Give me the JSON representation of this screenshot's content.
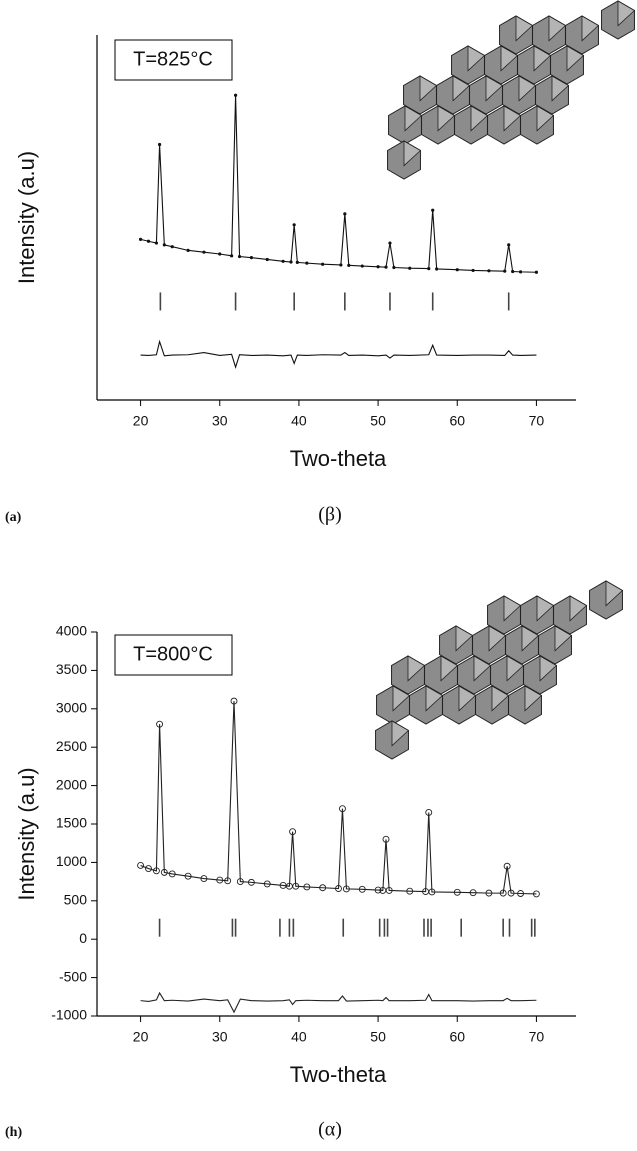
{
  "chart_data": [
    {
      "type": "line",
      "panel_label": "(a)",
      "caption": "(β)",
      "annotation": "T=825°C",
      "x_label": "Two-theta",
      "y_label": "Intensity (a.u)",
      "xlim": [
        15,
        75
      ],
      "xticks": [
        20,
        30,
        40,
        50,
        60,
        70
      ],
      "ylim": [
        0,
        100
      ],
      "color": "#111111",
      "marker": "dot",
      "observed": {
        "x": [
          20,
          21,
          22,
          22.4,
          23,
          24,
          26,
          28,
          30,
          31.5,
          32,
          32.5,
          34,
          36,
          38,
          39,
          39.4,
          39.8,
          41,
          43,
          45.3,
          45.8,
          46.3,
          48,
          50,
          51,
          51.5,
          52,
          54,
          56.4,
          56.9,
          57.4,
          60,
          62,
          64,
          66,
          66.5,
          67,
          68,
          70
        ],
        "values": [
          44,
          43.5,
          43,
          70,
          42.5,
          42,
          41,
          40.5,
          40,
          39.5,
          83.5,
          39.3,
          39,
          38.5,
          38,
          37.8,
          48,
          37.7,
          37.5,
          37.2,
          37,
          51,
          36.9,
          36.7,
          36.5,
          36.4,
          43,
          36.3,
          36.1,
          36,
          52,
          35.9,
          35.7,
          35.5,
          35.4,
          35.3,
          42.5,
          35.2,
          35.1,
          35
        ]
      },
      "difference": {
        "x": [
          20,
          21,
          22,
          22.4,
          23,
          24,
          26,
          28,
          30,
          31.5,
          32,
          32.5,
          34,
          36,
          38,
          39,
          39.4,
          39.8,
          41,
          43,
          45.3,
          45.8,
          46.3,
          48,
          50,
          51,
          51.5,
          52,
          54,
          56.4,
          56.9,
          57.4,
          60,
          62,
          64,
          66,
          66.5,
          67,
          68,
          70
        ],
        "values": [
          12.3,
          12.2,
          12.4,
          16,
          12.1,
          12.3,
          12.4,
          13,
          12.2,
          12.5,
          9,
          12.4,
          12.2,
          12.3,
          12.1,
          12.3,
          10,
          12.3,
          12.2,
          12.4,
          12.3,
          13,
          12.2,
          12.3,
          12.1,
          12.3,
          11.5,
          12.3,
          12.2,
          12.4,
          15,
          12.3,
          12.2,
          12.3,
          12.3,
          12.2,
          13.5,
          12.3,
          12.2,
          12.3
        ]
      },
      "bragg_positions": [
        22.5,
        32,
        39.4,
        45.8,
        51.5,
        56.9,
        66.5
      ],
      "bragg_level": 27
    },
    {
      "type": "line",
      "panel_label": "(h)",
      "caption": "(α)",
      "annotation": "T=800°C",
      "x_label": "Two-theta",
      "y_label": "Intensity (a.u)",
      "xlim": [
        15,
        75
      ],
      "xticks": [
        20,
        30,
        40,
        50,
        60,
        70
      ],
      "ylim": [
        -1000,
        4000
      ],
      "yticks": [
        -1000,
        -500,
        0,
        500,
        1000,
        1500,
        2000,
        2500,
        3000,
        3500,
        4000
      ],
      "color": "#222222",
      "marker": "circle",
      "observed": {
        "x": [
          20,
          21,
          22,
          22.4,
          23,
          24,
          26,
          28,
          30,
          31,
          31.8,
          32.6,
          34,
          36,
          38,
          38.8,
          39.2,
          39.6,
          41,
          43,
          45,
          45.5,
          46,
          48,
          50,
          50.6,
          51,
          51.4,
          54,
          56,
          56.4,
          56.8,
          60,
          62,
          64,
          65.8,
          66.3,
          66.8,
          68,
          70
        ],
        "values": [
          960,
          920,
          890,
          2800,
          870,
          850,
          820,
          790,
          770,
          760,
          3100,
          750,
          740,
          720,
          700,
          690,
          1400,
          690,
          680,
          670,
          660,
          1700,
          655,
          650,
          640,
          635,
          1300,
          635,
          625,
          620,
          1650,
          615,
          610,
          605,
          600,
          600,
          950,
          600,
          595,
          590
        ]
      },
      "difference": {
        "x": [
          20,
          21,
          22,
          22.4,
          23,
          24,
          26,
          28,
          30,
          31,
          31.8,
          32.6,
          34,
          36,
          38,
          38.8,
          39.2,
          39.6,
          41,
          43,
          45,
          45.5,
          46,
          48,
          50,
          50.6,
          51,
          51.4,
          54,
          56,
          56.4,
          56.8,
          60,
          62,
          64,
          65.8,
          66.3,
          66.8,
          68,
          70
        ],
        "values": [
          -800,
          -810,
          -790,
          -700,
          -800,
          -795,
          -805,
          -780,
          -800,
          -790,
          -950,
          -780,
          -800,
          -805,
          -800,
          -790,
          -850,
          -800,
          -795,
          -800,
          -800,
          -740,
          -805,
          -800,
          -795,
          -800,
          -760,
          -800,
          -800,
          -795,
          -720,
          -800,
          -800,
          -805,
          -800,
          -800,
          -770,
          -800,
          -800,
          -795
        ]
      },
      "bragg_positions": [
        22.4,
        31.6,
        32,
        37.6,
        38.8,
        39.3,
        45.6,
        50.2,
        50.8,
        51.2,
        55.8,
        56.3,
        56.7,
        60.5,
        65.8,
        66.6,
        69.4,
        69.8
      ],
      "bragg_level": 150
    }
  ]
}
